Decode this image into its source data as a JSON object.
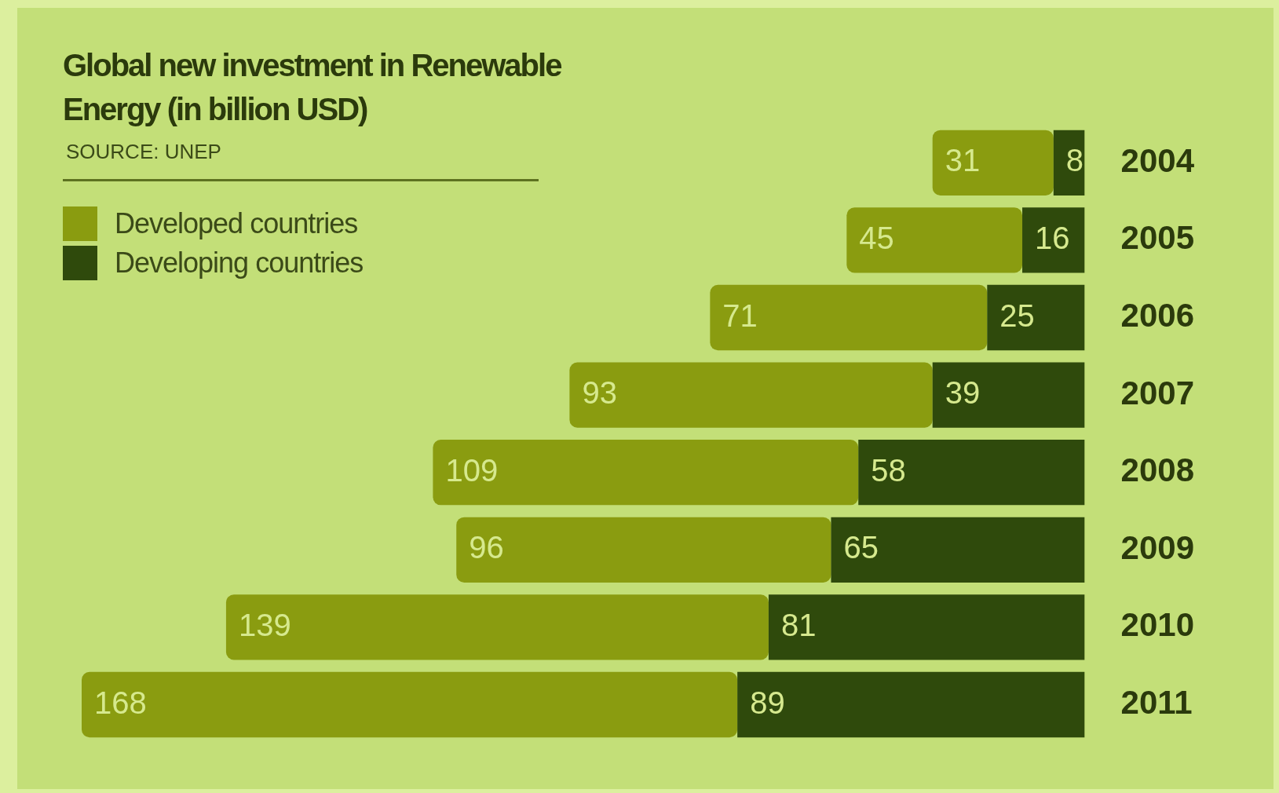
{
  "chart_data": {
    "type": "bar",
    "orientation": "horizontal",
    "stacked": true,
    "title": "Global new investment in Renewable Energy (in billion USD)",
    "annotations": [
      "SOURCE: UNEP"
    ],
    "categories": [
      "2004",
      "2005",
      "2006",
      "2007",
      "2008",
      "2009",
      "2010",
      "2011"
    ],
    "series": [
      {
        "name": "Developing countries",
        "color": "#2f4a0c",
        "values": [
          8,
          16,
          25,
          39,
          58,
          65,
          81,
          89
        ]
      },
      {
        "name": "Developed countries",
        "color": "#8a9c10",
        "values": [
          31,
          45,
          71,
          93,
          109,
          96,
          139,
          168
        ]
      }
    ],
    "data_labels": true,
    "legend": "top left",
    "tick_labels": "y"
  }
}
